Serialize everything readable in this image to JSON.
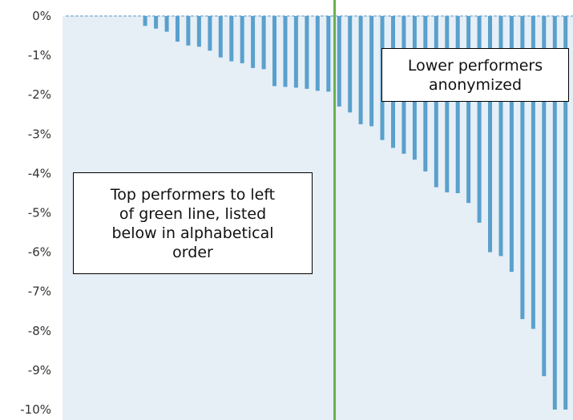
{
  "chart_data": {
    "type": "bar",
    "ylim": [
      -10,
      0
    ],
    "y_ticks": [
      "0%",
      "-1%",
      "-2%",
      "-3%",
      "-4%",
      "-5%",
      "-6%",
      "-7%",
      "-8%",
      "-9%",
      "-10%"
    ],
    "grid": false,
    "divider_after_bar": 25,
    "colors": {
      "bar": "#5aa0cc",
      "plot_background": "#e6eef6",
      "divider": "#6ab04c",
      "zero_line": "#8bb8d8"
    },
    "values": [
      0,
      0,
      0,
      0,
      0,
      0,
      0,
      -0.25,
      -0.32,
      -0.4,
      -0.65,
      -0.75,
      -0.78,
      -0.88,
      -1.05,
      -1.15,
      -1.2,
      -1.32,
      -1.35,
      -1.78,
      -1.8,
      -1.82,
      -1.85,
      -1.9,
      -1.92,
      -2.3,
      -2.45,
      -2.75,
      -2.8,
      -3.15,
      -3.35,
      -3.5,
      -3.65,
      -3.95,
      -4.35,
      -4.48,
      -4.5,
      -4.75,
      -5.25,
      -6.0,
      -6.1,
      -6.5,
      -7.7,
      -7.95,
      -9.15,
      -10.0,
      -10.0
    ]
  },
  "callouts": {
    "top": [
      "Top performers to left",
      "of green line, listed",
      "below in alphabetical",
      "order"
    ],
    "lower": [
      "Lower performers",
      "anonymized"
    ]
  }
}
